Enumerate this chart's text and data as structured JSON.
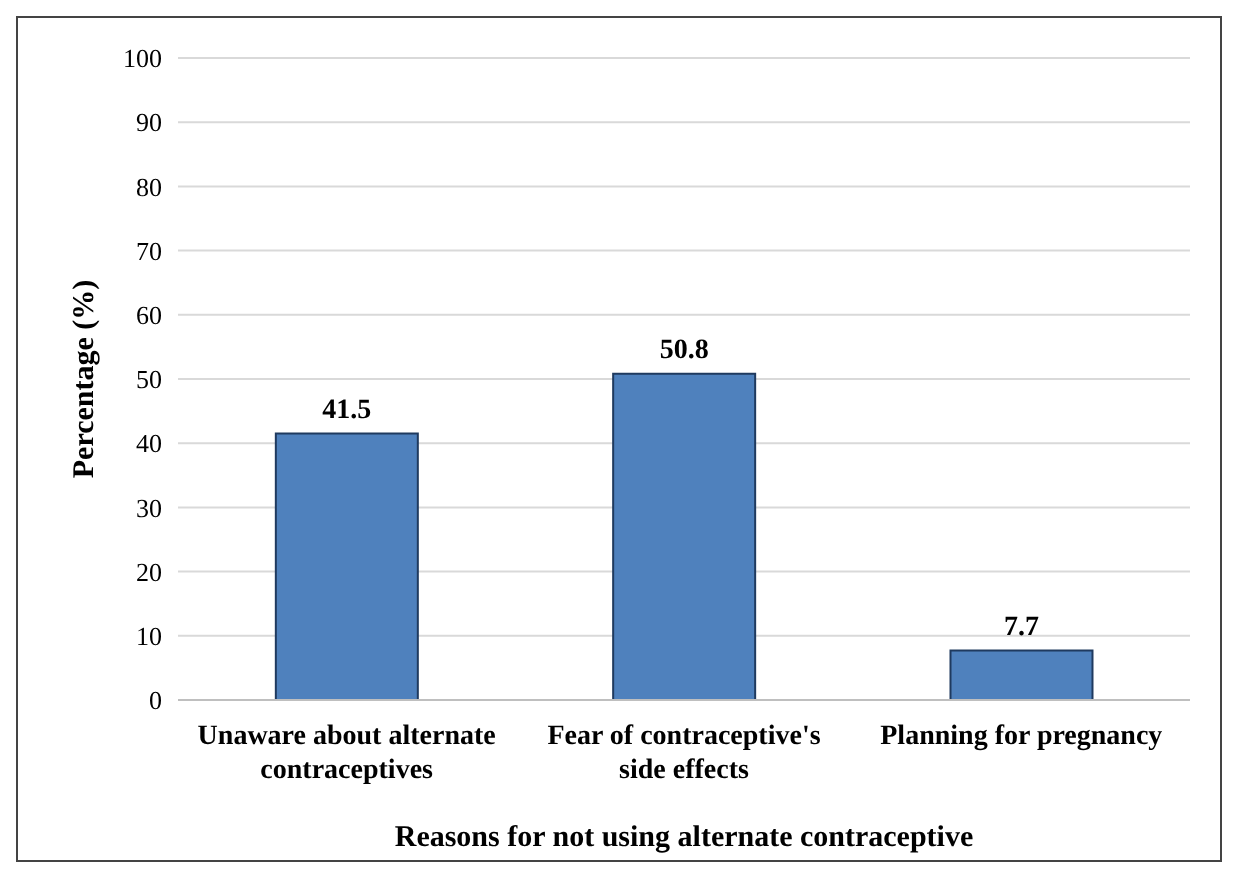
{
  "chart_data": {
    "type": "bar",
    "xlabel": "Reasons for not using alternate contraceptive",
    "ylabel": "Percentage (%)",
    "categories": [
      "Unaware about alternate contraceptives",
      "Fear of contraceptive's side effects",
      "Planning for pregnancy"
    ],
    "values": [
      41.5,
      50.8,
      7.7
    ],
    "color": "#4f81bd",
    "ylim": [
      0,
      100
    ],
    "yticks": [
      0,
      10,
      20,
      30,
      40,
      50,
      60,
      70,
      80,
      90,
      100
    ],
    "grid": "y",
    "data_labels": true,
    "legend": false
  }
}
